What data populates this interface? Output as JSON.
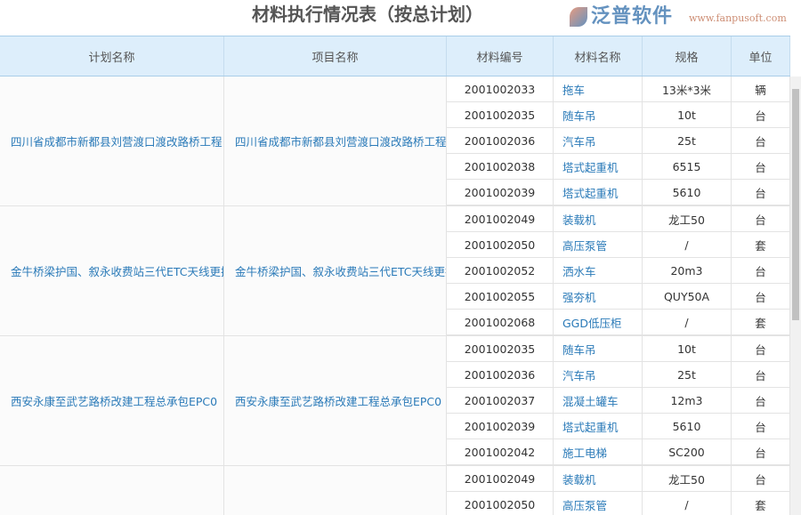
{
  "title": "材料执行情况表（按总计划）",
  "headers": [
    "计划名称",
    "项目名称",
    "材料编号",
    "材料名称",
    "规格",
    "单位"
  ],
  "groups": [
    {
      "plan": "四川省成都市新都县刘营渡口渡改路桥工程",
      "project": "四川省成都市新都县刘营渡口渡改路桥工程",
      "rows": [
        [
          "2001002033",
          "拖车",
          "13米*3米",
          "辆"
        ],
        [
          "2001002035",
          "随车吊",
          "10t",
          "台"
        ],
        [
          "2001002036",
          "汽车吊",
          "25t",
          "台"
        ],
        [
          "2001002038",
          "塔式起重机",
          "6515",
          "台"
        ],
        [
          "2001002039",
          "塔式起重机",
          "5610",
          "台"
        ]
      ]
    },
    {
      "plan": "金牛桥梁护国、叙永收费站三代ETC天线更换",
      "project": "金牛桥梁护国、叙永收费站三代ETC天线更换",
      "rows": [
        [
          "2001002049",
          "装载机",
          "龙工50",
          "台"
        ],
        [
          "2001002050",
          "高压泵管",
          "/",
          "套"
        ],
        [
          "2001002052",
          "洒水车",
          "20m3",
          "台"
        ],
        [
          "2001002055",
          "强夯机",
          "QUY50A",
          "台"
        ],
        [
          "2001002068",
          "GGD低压柜",
          "/",
          "套"
        ]
      ]
    },
    {
      "plan": "西安永康至武艺路桥改建工程总承包EPC0",
      "project": "西安永康至武艺路桥改建工程总承包EPC0",
      "rows": [
        [
          "2001002035",
          "随车吊",
          "10t",
          "台"
        ],
        [
          "2001002036",
          "汽车吊",
          "25t",
          "台"
        ],
        [
          "2001002037",
          "混凝土罐车",
          "12m3",
          "台"
        ],
        [
          "2001002039",
          "塔式起重机",
          "5610",
          "台"
        ],
        [
          "2001002042",
          "施工电梯",
          "SC200",
          "台"
        ]
      ]
    },
    {
      "plan": "",
      "project": "",
      "rows": [
        [
          "2001002049",
          "装载机",
          "龙工50",
          "台"
        ],
        [
          "2001002050",
          "高压泵管",
          "/",
          "套"
        ]
      ]
    }
  ],
  "watermark": {
    "name": "泛普软件",
    "url": "www.fanpusoft.com"
  }
}
